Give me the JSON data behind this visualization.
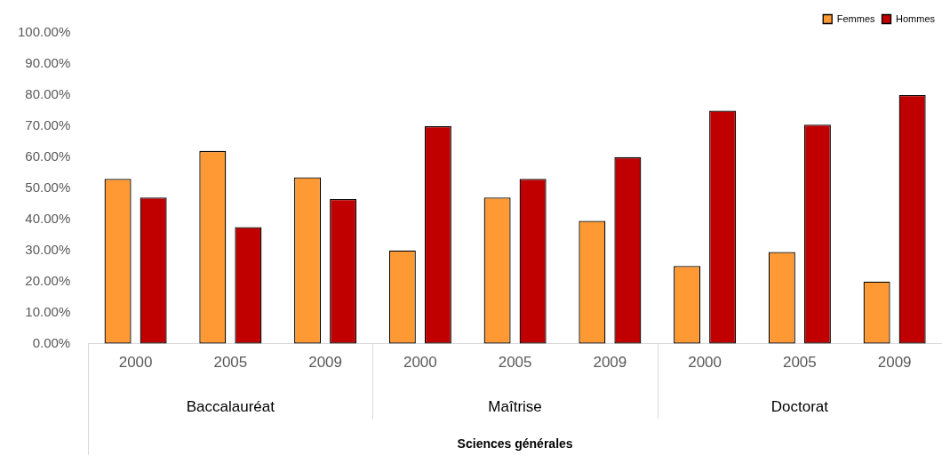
{
  "chart_data": {
    "type": "bar",
    "categories": [
      "2000",
      "2005",
      "2009",
      "2000",
      "2005",
      "2009",
      "2000",
      "2005",
      "2009"
    ],
    "series": [
      {
        "name": "Femmes",
        "color": "#ff9933",
        "values": [
          53,
          62,
          53.5,
          30,
          47,
          39.5,
          25,
          29.5,
          20
        ]
      },
      {
        "name": "Hommes",
        "color": "#c00000",
        "values": [
          47,
          37.5,
          46.5,
          70,
          53,
          60,
          75,
          70.5,
          80
        ]
      }
    ],
    "annotations": [
      "Baccalauréat",
      "Maîtrise",
      "Doctorat",
      "Sciences générales"
    ],
    "ylim": [
      0,
      100
    ],
    "yticks": [
      {
        "value": 0,
        "label": "0.00%"
      },
      {
        "value": 10,
        "label": "10.00%"
      },
      {
        "value": 20,
        "label": "20.00%"
      },
      {
        "value": 30,
        "label": "30.00%"
      },
      {
        "value": 40,
        "label": "40.00%"
      },
      {
        "value": 50,
        "label": "50.00%"
      },
      {
        "value": 60,
        "label": "60.00%"
      },
      {
        "value": 70,
        "label": "70.00%"
      },
      {
        "value": 80,
        "label": "80.00%"
      },
      {
        "value": 90,
        "label": "90.00%"
      },
      {
        "value": 100,
        "label": "100.00%"
      }
    ],
    "grid": false,
    "legend": "top right"
  }
}
